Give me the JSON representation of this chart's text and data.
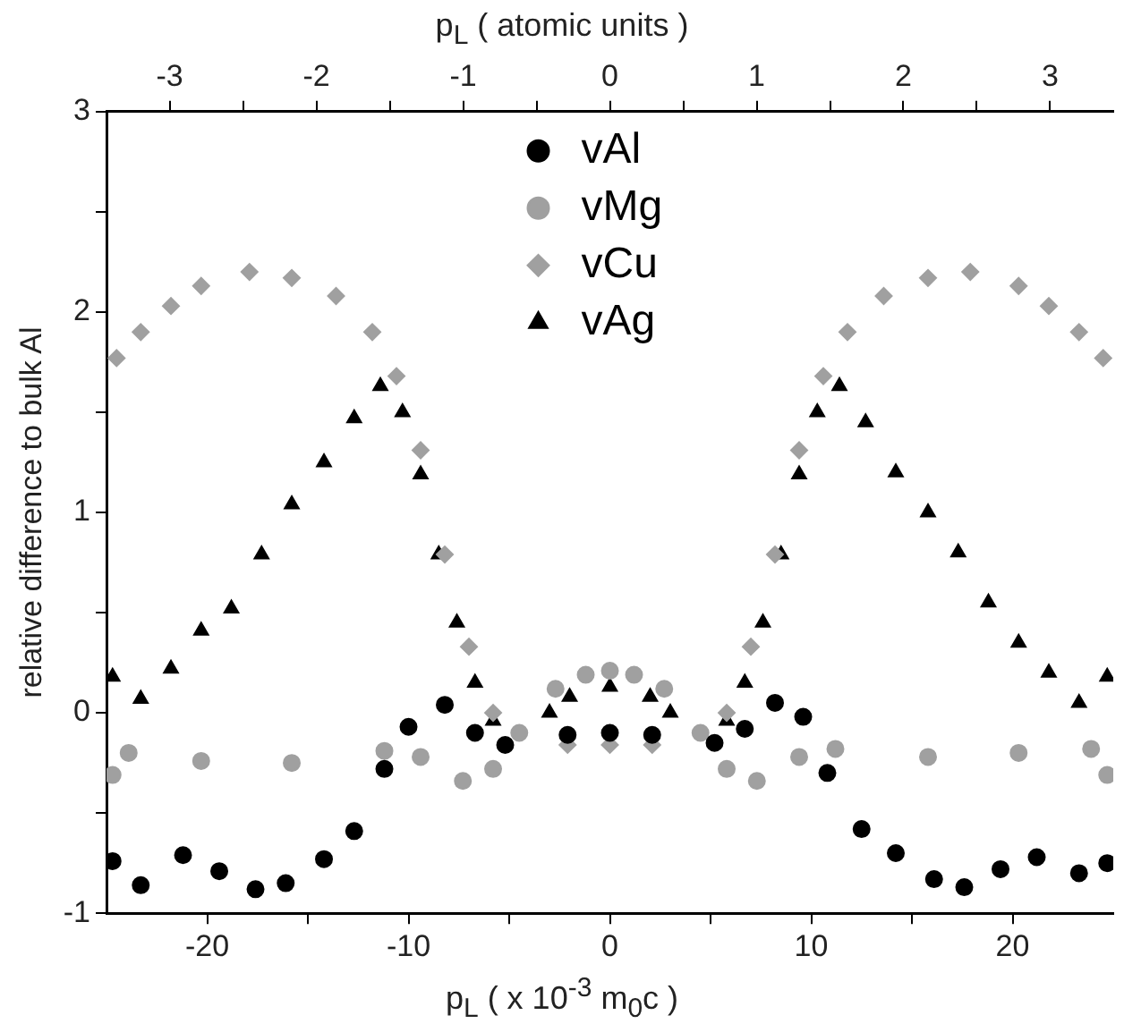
{
  "chart_data": {
    "type": "scatter",
    "xlabel": "p$_{L}$ ( x 10$^{-3}$ m$_{0}$c )",
    "x2label": "p$_{L}$ ( atomic units )",
    "ylabel": "relative difference to bulk Al",
    "xlim": [
      -25,
      25
    ],
    "xticks": [
      -20,
      {
        "value": -15,
        "label": null
      },
      -10,
      {
        "value": -5,
        "label": null
      },
      0,
      {
        "value": 5,
        "label": null
      },
      10,
      {
        "value": 15,
        "label": null
      },
      20
    ],
    "x2lim": [
      -3.43,
      3.43
    ],
    "x2ticks": [
      -3,
      {
        "value": -2.5,
        "label": null
      },
      -2,
      {
        "value": -1.5,
        "label": null
      },
      -1,
      {
        "value": -0.5,
        "label": null
      },
      0,
      {
        "value": 0.5,
        "label": null
      },
      1,
      {
        "value": 1.5,
        "label": null
      },
      2,
      {
        "value": 2.5,
        "label": null
      },
      3
    ],
    "ylim": [
      -1,
      3
    ],
    "yticks": [
      -1,
      {
        "value": -0.5,
        "label": null
      },
      0,
      {
        "value": 0.5,
        "label": null
      },
      1,
      {
        "value": 1.5,
        "label": null
      },
      2,
      {
        "value": 2.5,
        "label": null
      },
      3
    ],
    "grid": false,
    "legend": "top",
    "series": [
      {
        "name": "vAl",
        "color": "#000000",
        "marker": "circle",
        "x": [
          -24.7,
          -23.3,
          -21.2,
          -19.4,
          -17.6,
          -16.1,
          -14.2,
          -12.7,
          -11.2,
          -10,
          -8.2,
          -6.7,
          -5.2,
          -2.1,
          0,
          2.1,
          5.2,
          6.7,
          8.2,
          9.6,
          10.8,
          12.5,
          14.2,
          16.1,
          17.6,
          19.4,
          21.2,
          23.3,
          24.7
        ],
        "values": [
          -0.74,
          -0.86,
          -0.71,
          -0.79,
          -0.88,
          -0.85,
          -0.73,
          -0.59,
          -0.28,
          -0.07,
          0.04,
          -0.1,
          -0.16,
          -0.11,
          -0.1,
          -0.11,
          -0.15,
          -0.08,
          0.05,
          -0.02,
          -0.3,
          -0.58,
          -0.7,
          -0.83,
          -0.87,
          -0.78,
          -0.72,
          -0.8,
          -0.75
        ]
      },
      {
        "name": "vMg",
        "color": "#a0a0a0",
        "marker": "circle",
        "x": [
          -24.7,
          -23.9,
          -20.3,
          -15.8,
          -11.2,
          -9.4,
          -7.3,
          -5.8,
          -4.5,
          -2.7,
          -1.2,
          0,
          1.2,
          2.7,
          4.5,
          5.8,
          7.3,
          9.4,
          11.2,
          15.8,
          20.3,
          23.9,
          24.7
        ],
        "values": [
          -0.31,
          -0.2,
          -0.24,
          -0.25,
          -0.19,
          -0.22,
          -0.34,
          -0.28,
          -0.1,
          0.12,
          0.19,
          0.21,
          0.19,
          0.12,
          -0.1,
          -0.28,
          -0.34,
          -0.22,
          -0.18,
          -0.22,
          -0.2,
          -0.18,
          -0.31
        ]
      },
      {
        "name": "vCu",
        "color": "#a0a0a0",
        "marker": "diamond",
        "x": [
          -24.5,
          -23.3,
          -21.8,
          -20.3,
          -17.9,
          -15.8,
          -13.6,
          -11.8,
          -10.6,
          -9.4,
          -8.2,
          -7,
          -5.8,
          -2.1,
          0,
          2.1,
          5.8,
          7,
          8.2,
          9.4,
          10.6,
          11.8,
          13.6,
          15.8,
          17.9,
          20.3,
          21.8,
          23.3,
          24.5
        ],
        "values": [
          1.77,
          1.9,
          2.03,
          2.13,
          2.2,
          2.17,
          2.08,
          1.9,
          1.68,
          1.31,
          0.79,
          0.33,
          0,
          -0.16,
          -0.16,
          -0.16,
          0,
          0.33,
          0.79,
          1.31,
          1.68,
          1.9,
          2.08,
          2.17,
          2.2,
          2.13,
          2.03,
          1.9,
          1.77
        ]
      },
      {
        "name": "vAg",
        "color": "#000000",
        "marker": "triangle",
        "x": [
          -24.7,
          -23.3,
          -21.8,
          -20.3,
          -18.8,
          -17.3,
          -15.8,
          -14.2,
          -12.7,
          -11.4,
          -10.3,
          -9.4,
          -8.5,
          -7.6,
          -6.7,
          -5.8,
          -3,
          -2,
          0,
          2,
          3,
          5.8,
          6.7,
          7.6,
          8.5,
          9.4,
          10.3,
          11.4,
          12.7,
          14.2,
          15.8,
          17.3,
          18.8,
          20.3,
          21.8,
          23.3,
          24.7
        ],
        "values": [
          0.18,
          0.07,
          0.22,
          0.41,
          0.52,
          0.79,
          1.04,
          1.25,
          1.47,
          1.63,
          1.5,
          1.19,
          0.79,
          0.45,
          0.15,
          -0.04,
          0,
          0.08,
          0.13,
          0.08,
          0,
          -0.04,
          0.15,
          0.45,
          0.79,
          1.19,
          1.5,
          1.63,
          1.45,
          1.2,
          1.0,
          0.8,
          0.55,
          0.35,
          0.2,
          0.05,
          0.18
        ]
      }
    ]
  }
}
